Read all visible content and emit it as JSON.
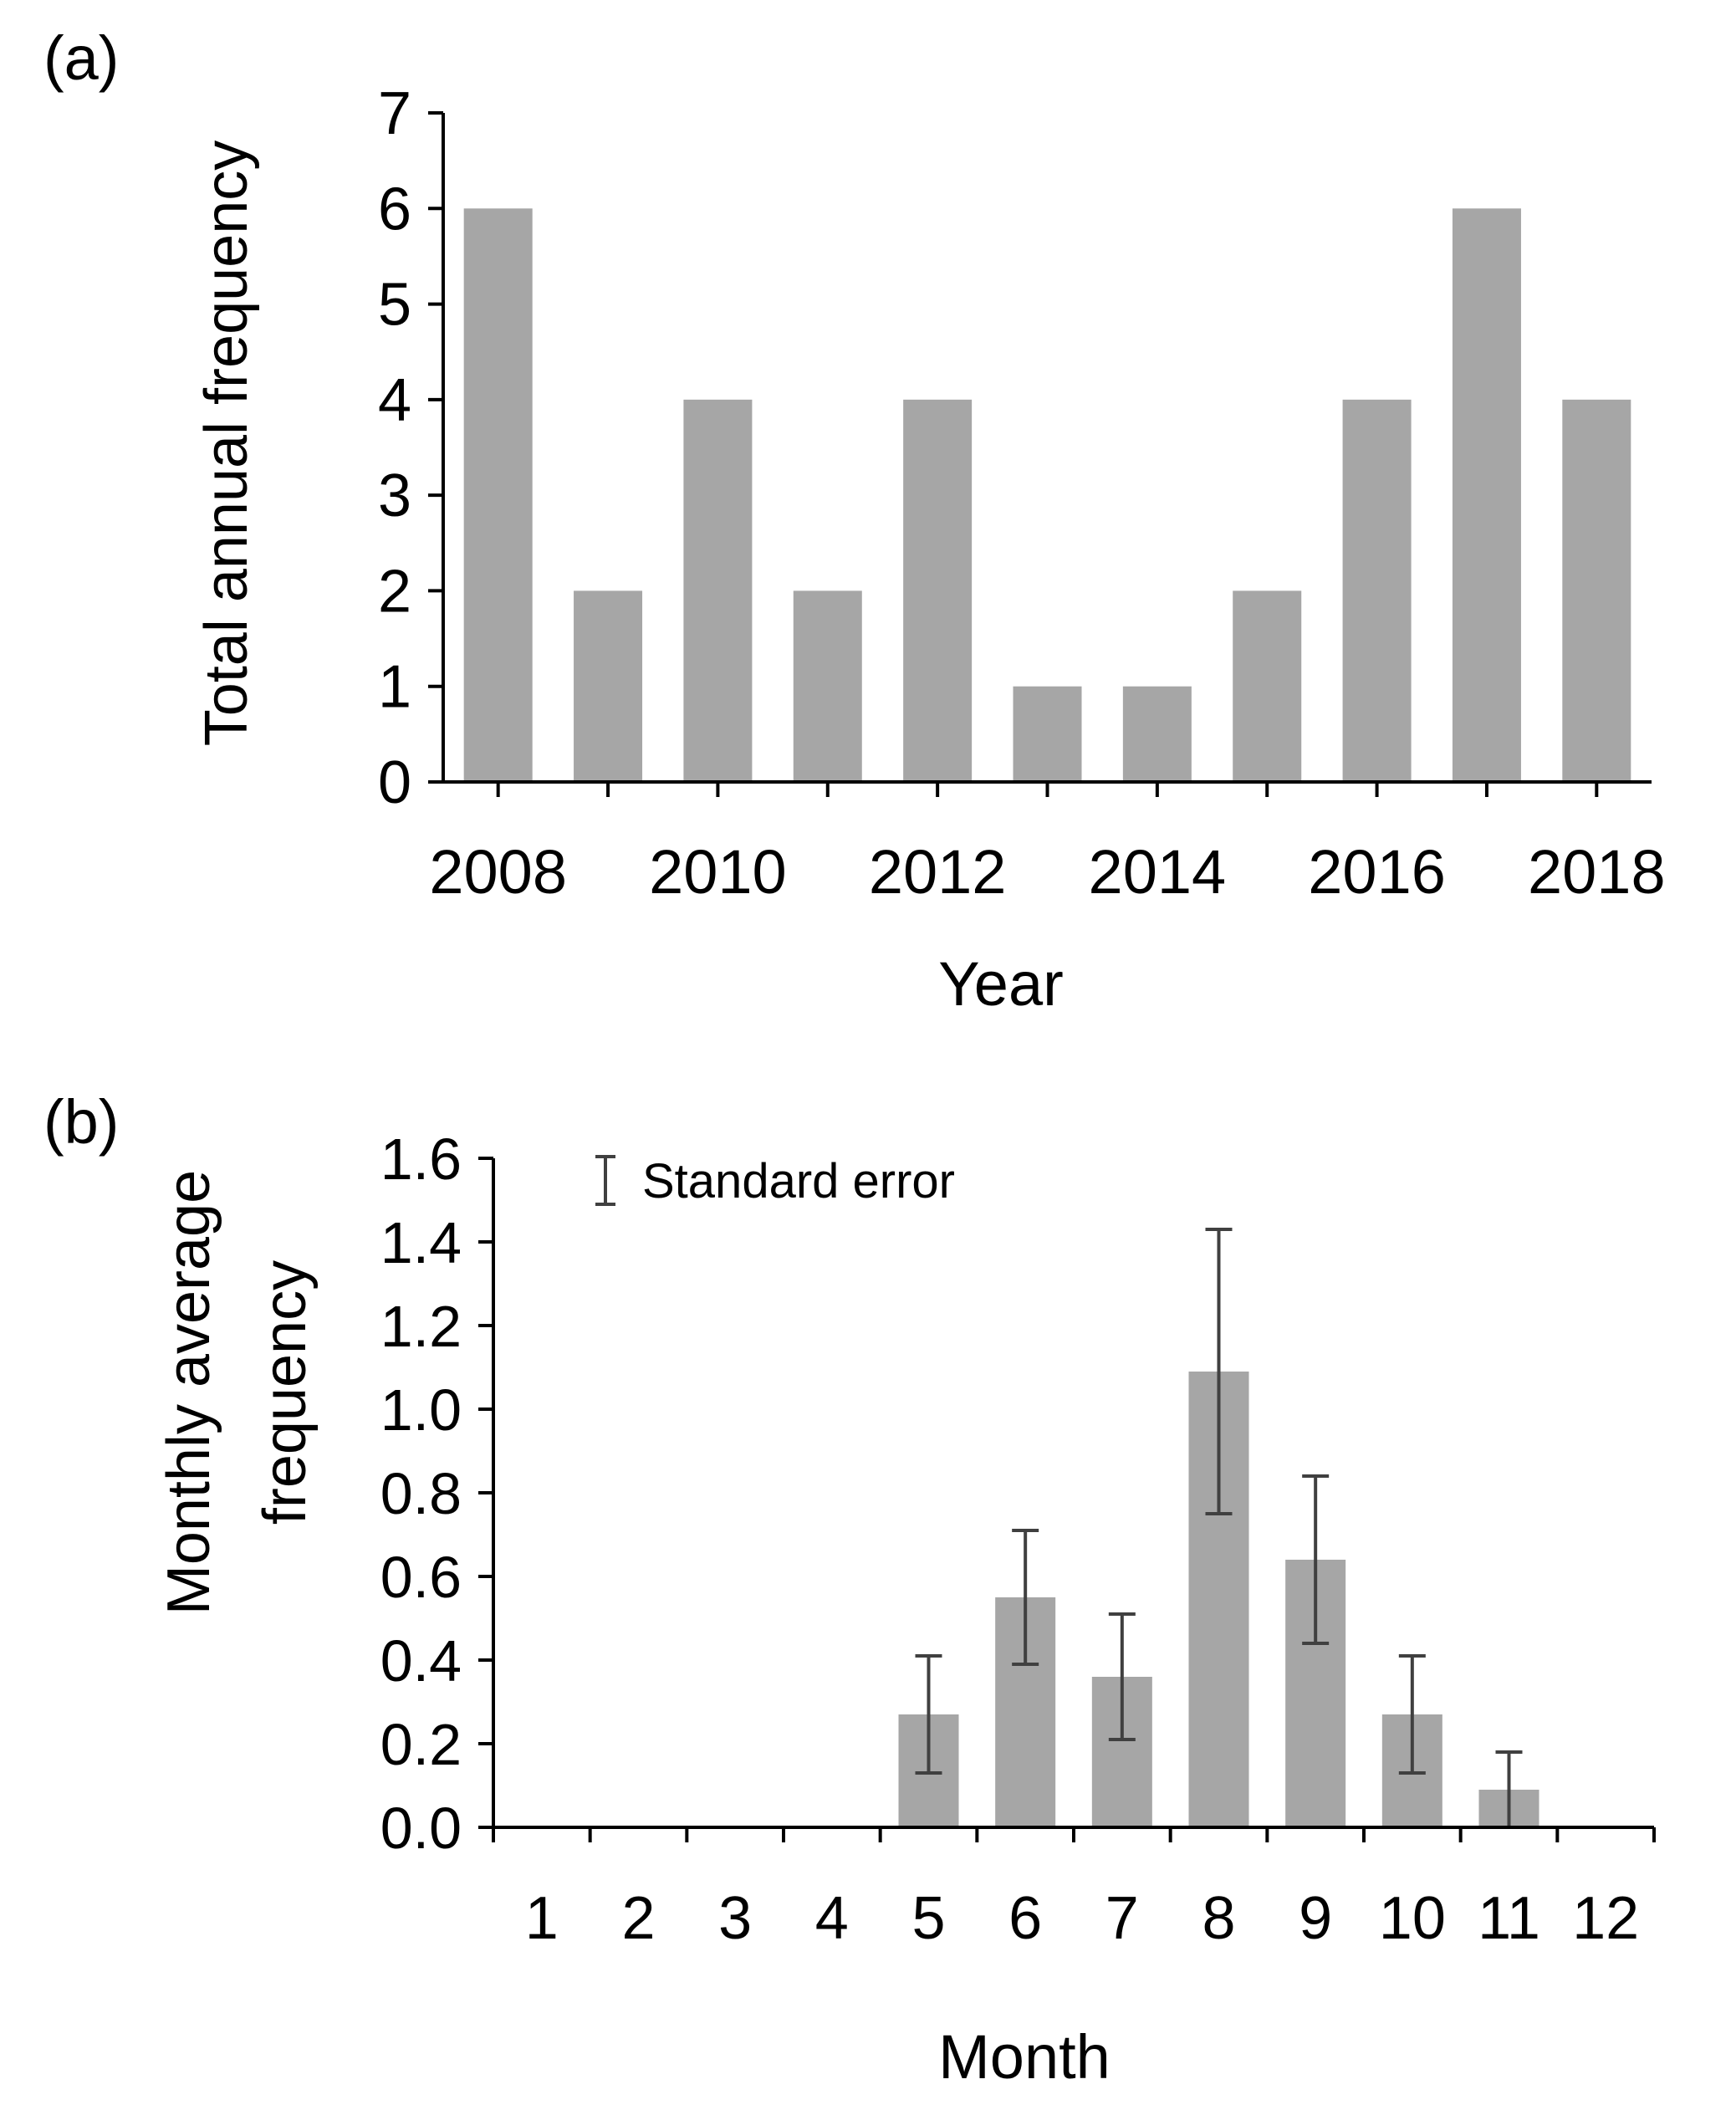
{
  "chart_data": [
    {
      "type": "bar",
      "panel_label": "(a)",
      "title": "",
      "xlabel": "Year",
      "ylabel": "Total annual frequency",
      "categories": [
        "2008",
        "2009",
        "2010",
        "2011",
        "2012",
        "2013",
        "2014",
        "2015",
        "2016",
        "2017",
        "2018"
      ],
      "values": [
        6,
        2,
        4,
        2,
        4,
        1,
        1,
        2,
        4,
        6,
        4
      ],
      "x_tick_labels": [
        "2008",
        "2010",
        "2012",
        "2014",
        "2016",
        "2018"
      ],
      "y_ticks": [
        "0",
        "1",
        "2",
        "3",
        "4",
        "5",
        "6",
        "7"
      ],
      "ylim": [
        0,
        7
      ],
      "grid": false,
      "bar_color": "#a6a6a6"
    },
    {
      "type": "bar",
      "panel_label": "(b)",
      "title": "",
      "xlabel": "Month",
      "ylabel": [
        "Monthly average",
        "frequency"
      ],
      "categories": [
        "1",
        "2",
        "3",
        "4",
        "5",
        "6",
        "7",
        "8",
        "9",
        "10",
        "11",
        "12"
      ],
      "values": [
        0,
        0,
        0,
        0,
        0.27,
        0.55,
        0.36,
        1.09,
        0.64,
        0.27,
        0.09,
        0
      ],
      "errors": [
        0,
        0,
        0,
        0,
        0.14,
        0.16,
        0.15,
        0.34,
        0.2,
        0.14,
        0.09,
        0
      ],
      "y_ticks": [
        "0.0",
        "0.2",
        "0.4",
        "0.6",
        "0.8",
        "1.0",
        "1.2",
        "1.4",
        "1.6"
      ],
      "ylim": [
        0,
        1.6
      ],
      "legend": {
        "label": "Standard error",
        "position": "top-left"
      },
      "grid": false,
      "bar_color": "#a6a6a6",
      "error_color": "#404040"
    }
  ]
}
